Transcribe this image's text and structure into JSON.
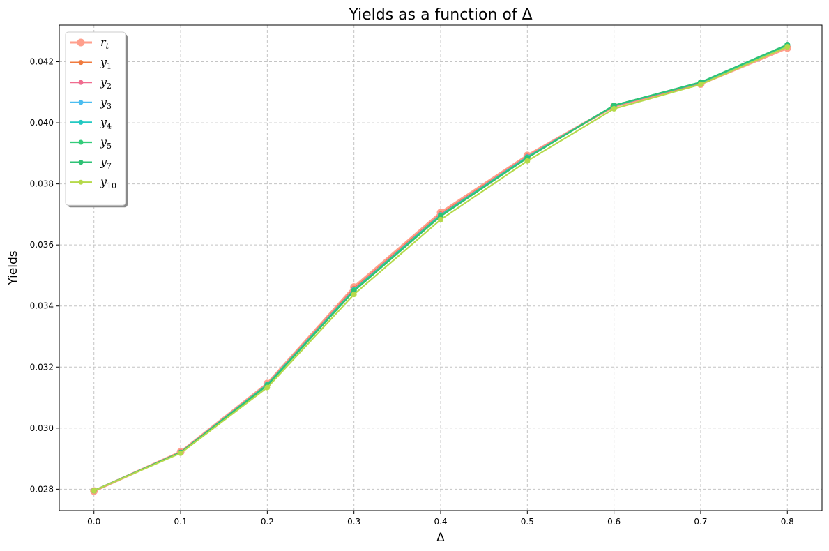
{
  "chart_data": {
    "type": "line",
    "title": "Yields as a function of Δ",
    "xlabel": "Δ",
    "ylabel": "Yields",
    "x": [
      0.0,
      0.1,
      0.2,
      0.3,
      0.4,
      0.5,
      0.6,
      0.7,
      0.8
    ],
    "xlim": [
      -0.04,
      0.84
    ],
    "ylim": [
      0.0273,
      0.0432
    ],
    "xticks": [
      "0.0",
      "0.1",
      "0.2",
      "0.3",
      "0.4",
      "0.5",
      "0.6",
      "0.7",
      "0.8"
    ],
    "yticks": [
      "0.028",
      "0.030",
      "0.032",
      "0.034",
      "0.036",
      "0.038",
      "0.040",
      "0.042"
    ],
    "grid": true,
    "legend_position": "top-left",
    "series": [
      {
        "name": "r",
        "sub": "t",
        "color": "#ff9f8c",
        "values": [
          0.02794,
          0.02922,
          0.03146,
          0.03462,
          0.03706,
          0.03893,
          0.04054,
          0.04127,
          0.04245
        ]
      },
      {
        "name": "y",
        "sub": "1",
        "color": "#f07b3f",
        "values": [
          0.02795,
          0.02921,
          0.03144,
          0.03457,
          0.03701,
          0.0389,
          0.04055,
          0.0413,
          0.0425
        ]
      },
      {
        "name": "y",
        "sub": "2",
        "color": "#f06c8f",
        "values": [
          0.02795,
          0.02921,
          0.03143,
          0.03455,
          0.03699,
          0.03889,
          0.04056,
          0.04131,
          0.04252
        ]
      },
      {
        "name": "y",
        "sub": "3",
        "color": "#4bbdf0",
        "values": [
          0.02795,
          0.0292,
          0.03143,
          0.03453,
          0.03698,
          0.03888,
          0.04056,
          0.04132,
          0.04253
        ]
      },
      {
        "name": "y",
        "sub": "4",
        "color": "#22c9c2",
        "values": [
          0.02795,
          0.0292,
          0.03142,
          0.03452,
          0.03697,
          0.03887,
          0.04057,
          0.04132,
          0.04254
        ]
      },
      {
        "name": "y",
        "sub": "5",
        "color": "#33cc7a",
        "values": [
          0.02795,
          0.0292,
          0.03141,
          0.03451,
          0.03696,
          0.03886,
          0.04057,
          0.04133,
          0.04255
        ]
      },
      {
        "name": "y",
        "sub": "7",
        "color": "#2ec275",
        "values": [
          0.02795,
          0.0292,
          0.0314,
          0.03449,
          0.03694,
          0.03885,
          0.04057,
          0.04133,
          0.04256
        ]
      },
      {
        "name": "y",
        "sub": "10",
        "color": "#b5d94a",
        "values": [
          0.02795,
          0.02918,
          0.03133,
          0.03438,
          0.03683,
          0.03875,
          0.04046,
          0.04126,
          0.04249
        ]
      }
    ]
  }
}
